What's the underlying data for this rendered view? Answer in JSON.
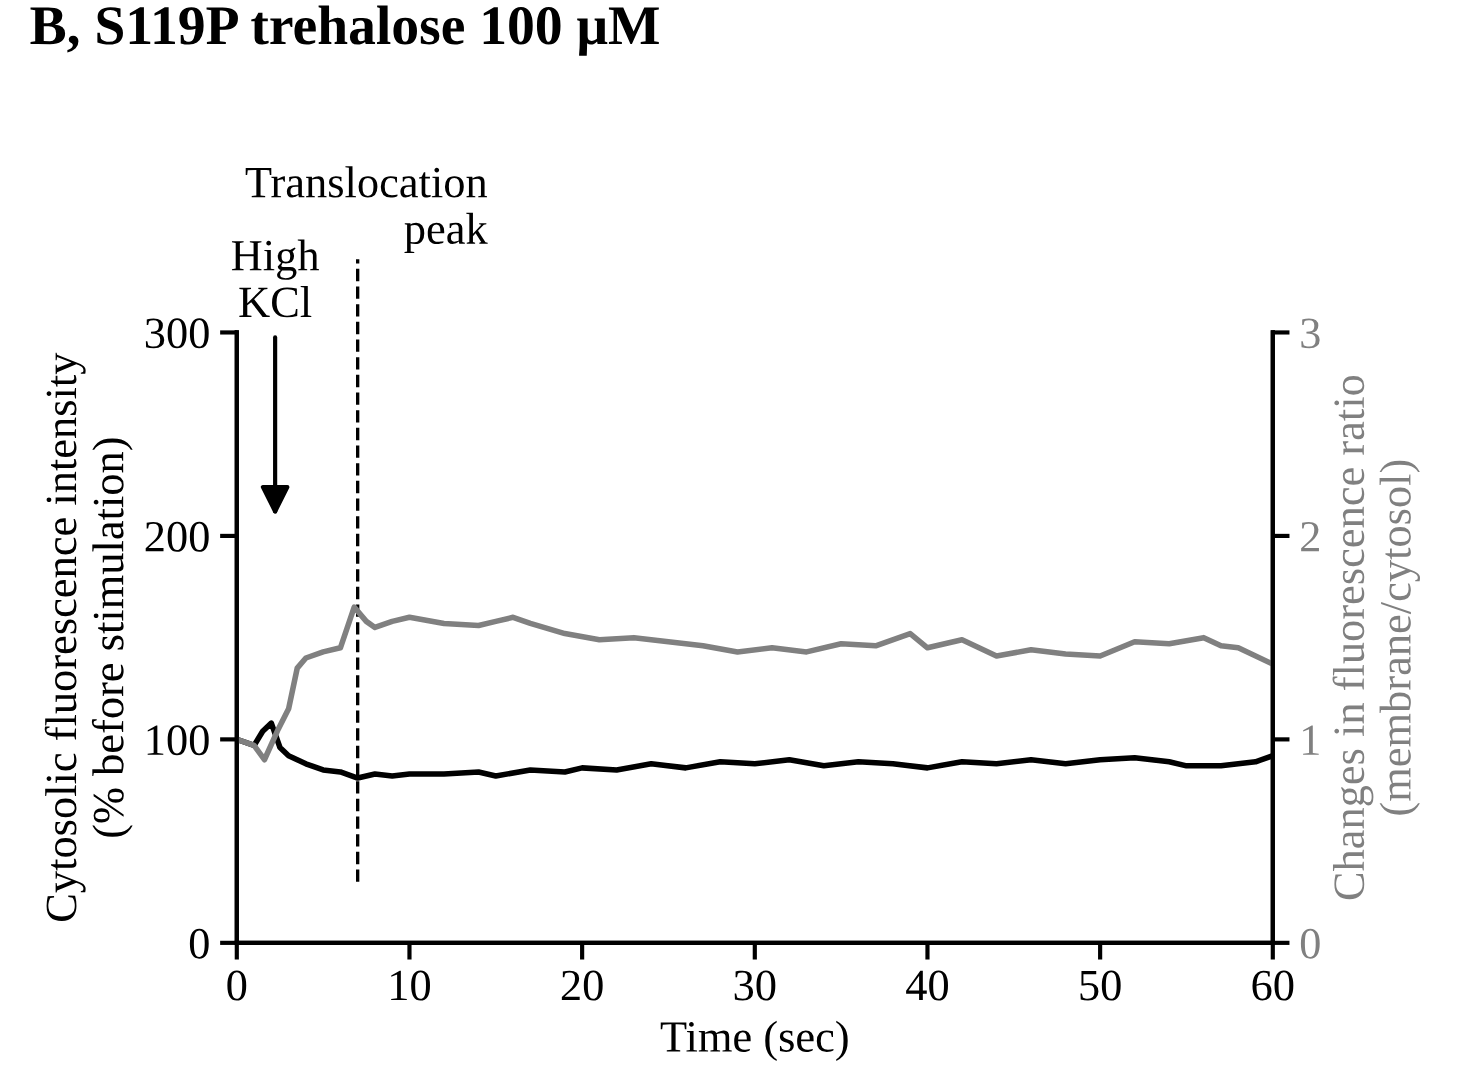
{
  "chart_data": {
    "type": "line",
    "title": "B, S119P trehalose 100 μM",
    "xlabel": "Time (sec)",
    "ylabel": "Cytosolic fluorescence intensity\n(% before stimulation)",
    "y2label": "Changes in fluorescence ratio\n(membrane/cytosol)",
    "xlim": [
      0,
      60
    ],
    "xticks": [
      0,
      10,
      20,
      30,
      40,
      50,
      60
    ],
    "ylim": [
      0,
      300
    ],
    "yticks": [
      0,
      100,
      200,
      300
    ],
    "y2lim": [
      0,
      3
    ],
    "y2ticks": [
      0,
      1,
      2,
      3
    ],
    "grid": false,
    "marker": "none",
    "line_style": "solid",
    "series": [
      {
        "color": "#000000",
        "x": [
          0,
          1,
          1.5,
          2,
          2.5,
          3,
          4,
          5,
          6,
          7,
          8,
          9,
          10,
          12,
          14,
          15,
          17,
          19,
          20,
          22,
          24,
          26,
          28,
          30,
          32,
          34,
          36,
          38,
          40,
          42,
          44,
          46,
          48,
          50,
          52,
          54,
          55,
          57,
          59,
          60
        ],
        "values": [
          100,
          97,
          104,
          108,
          96,
          92,
          88,
          85,
          84,
          81,
          83,
          82,
          83,
          83,
          84,
          82,
          85,
          84,
          86,
          85,
          88,
          86,
          89,
          88,
          90,
          87,
          89,
          88,
          86,
          89,
          88,
          90,
          88,
          90,
          91,
          89,
          87,
          87,
          89,
          92
        ]
      },
      {
        "color": "#808080",
        "axis": "y2",
        "x": [
          0,
          1,
          1.6,
          2.4,
          3,
          3.5,
          4,
          5,
          6,
          6.8,
          7.5,
          8,
          9,
          10,
          12,
          14,
          15,
          16,
          17,
          19,
          21,
          23,
          25,
          27,
          29,
          31,
          33,
          35,
          37,
          39,
          40,
          42,
          44,
          46,
          48,
          50,
          52,
          54,
          56,
          57,
          58,
          60
        ],
        "values": [
          1.0,
          0.97,
          0.9,
          1.05,
          1.15,
          1.35,
          1.4,
          1.43,
          1.45,
          1.65,
          1.58,
          1.55,
          1.58,
          1.6,
          1.57,
          1.56,
          1.58,
          1.6,
          1.57,
          1.52,
          1.49,
          1.5,
          1.48,
          1.46,
          1.43,
          1.45,
          1.43,
          1.47,
          1.46,
          1.52,
          1.45,
          1.49,
          1.41,
          1.44,
          1.42,
          1.41,
          1.48,
          1.47,
          1.5,
          1.46,
          1.45,
          1.37
        ]
      }
    ],
    "ref_lines": [
      {
        "axis": "x",
        "value": 7,
        "label": "Translocation\npeak",
        "color": "#000000",
        "line_style": "dashed"
      }
    ],
    "annotations": [
      "High\nKCl"
    ]
  }
}
